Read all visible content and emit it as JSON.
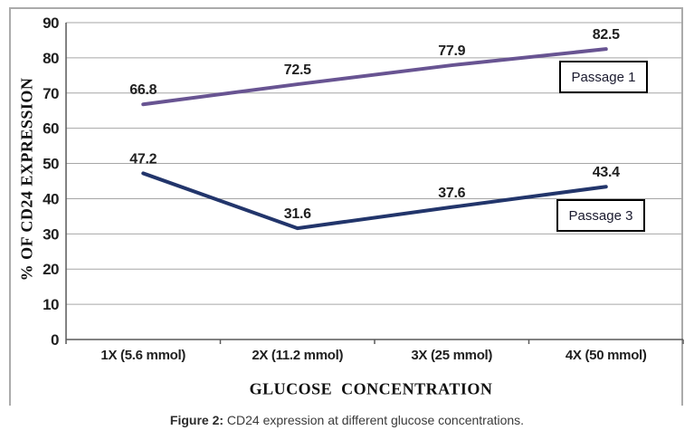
{
  "figure": {
    "caption_prefix": "Figure 2:",
    "caption_text": "CD24 expression at different glucose concentrations."
  },
  "chart_data": {
    "type": "line",
    "title": "",
    "xlabel": "GLUCOSE  CONCENTRATION",
    "ylabel": "% OF CD24 EXPRESSION",
    "categories": [
      "1X (5.6 mmol)",
      "2X (11.2 mmol)",
      "3X (25 mmol)",
      "4X (50 mmol)"
    ],
    "series": [
      {
        "name": "Passage 1",
        "values": [
          66.8,
          72.5,
          77.9,
          82.5
        ],
        "color": "#685492"
      },
      {
        "name": "Passage 3",
        "values": [
          47.2,
          31.6,
          37.6,
          43.4
        ],
        "color": "#22356B"
      }
    ],
    "ylim": [
      0,
      90
    ],
    "ytick_step": 10,
    "grid": true,
    "data_labels": true,
    "legend_position": "inline-boxes-right",
    "colors": {
      "gridline": "#A6A6A6",
      "axis": "#595959",
      "frame_border": "#ABABAB"
    }
  }
}
